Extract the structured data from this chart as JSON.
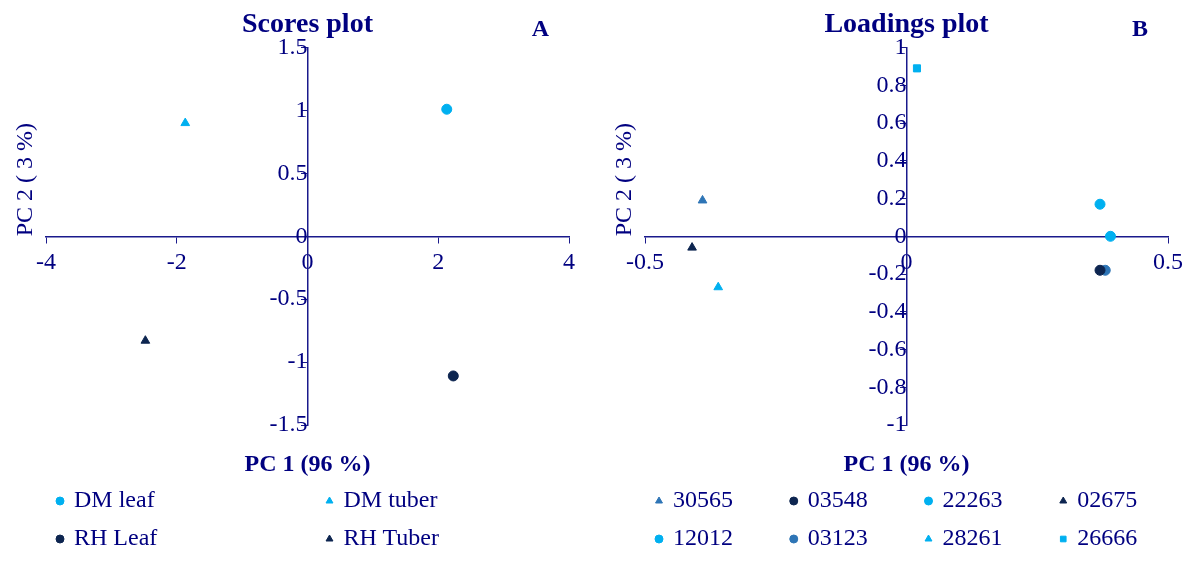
{
  "chart_data": [
    {
      "type": "scatter",
      "title": "Scores plot",
      "xlabel": "PC 1 (96 %)",
      "ylabel": "PC 2 ( 3 %)",
      "annotations": [
        "A"
      ],
      "xlim": [
        -4,
        4
      ],
      "xticks": [
        -4,
        -2,
        0,
        2,
        4
      ],
      "ylim": [
        -1.5,
        1.5
      ],
      "yticks": [
        -1.5,
        -1,
        -0.5,
        0,
        0.5,
        1,
        1.5
      ],
      "grid": false,
      "legend": "bottom",
      "series": [
        {
          "name": "DM leaf",
          "color": "#00b0f0",
          "marker": "circle",
          "x": [
            2.13
          ],
          "values": [
            1.01
          ]
        },
        {
          "name": "DM tuber",
          "color": "#00b0f0",
          "marker": "triangle",
          "x": [
            -1.87
          ],
          "values": [
            0.9
          ]
        },
        {
          "name": "RH Leaf",
          "color": "#0d2550",
          "marker": "circle",
          "x": [
            2.23
          ],
          "values": [
            -1.11
          ]
        },
        {
          "name": "RH Tuber",
          "color": "#0d2550",
          "marker": "triangle",
          "x": [
            -2.48
          ],
          "values": [
            -0.83
          ]
        }
      ]
    },
    {
      "type": "scatter",
      "title": "Loadings plot",
      "xlabel": "PC 1 (96 %)",
      "ylabel": "PC 2 ( 3 %)",
      "annotations": [
        "B"
      ],
      "xlim": [
        -0.5,
        0.5
      ],
      "xticks": [
        -0.5,
        0,
        0.5
      ],
      "ylim": [
        -1,
        1
      ],
      "yticks": [
        -1,
        -0.8,
        -0.6,
        -0.4,
        -0.2,
        0,
        0.2,
        0.4,
        0.6,
        0.8,
        1
      ],
      "grid": false,
      "legend": "bottom",
      "series": [
        {
          "name": "30565",
          "color": "#2e75b6",
          "marker": "triangle",
          "x": [
            -0.39
          ],
          "values": [
            0.19
          ]
        },
        {
          "name": "03548",
          "color": "#0d2550",
          "marker": "circle",
          "x": [
            0.37
          ],
          "values": [
            -0.18
          ]
        },
        {
          "name": "22263",
          "color": "#00b0f0",
          "marker": "circle",
          "x": [
            0.39
          ],
          "values": [
            0
          ]
        },
        {
          "name": "02675",
          "color": "#0d2550",
          "marker": "triangle",
          "x": [
            -0.41
          ],
          "values": [
            -0.06
          ]
        },
        {
          "name": "12012",
          "color": "#00b0f0",
          "marker": "circle",
          "x": [
            0.37
          ],
          "values": [
            0.17
          ]
        },
        {
          "name": "03123",
          "color": "#2e75b6",
          "marker": "circle",
          "x": [
            0.38
          ],
          "values": [
            -0.18
          ]
        },
        {
          "name": "28261",
          "color": "#00b0f0",
          "marker": "triangle",
          "x": [
            -0.36
          ],
          "values": [
            -0.27
          ]
        },
        {
          "name": "26666",
          "color": "#00b0f0",
          "marker": "square",
          "x": [
            0.02
          ],
          "values": [
            0.89
          ]
        }
      ]
    }
  ]
}
